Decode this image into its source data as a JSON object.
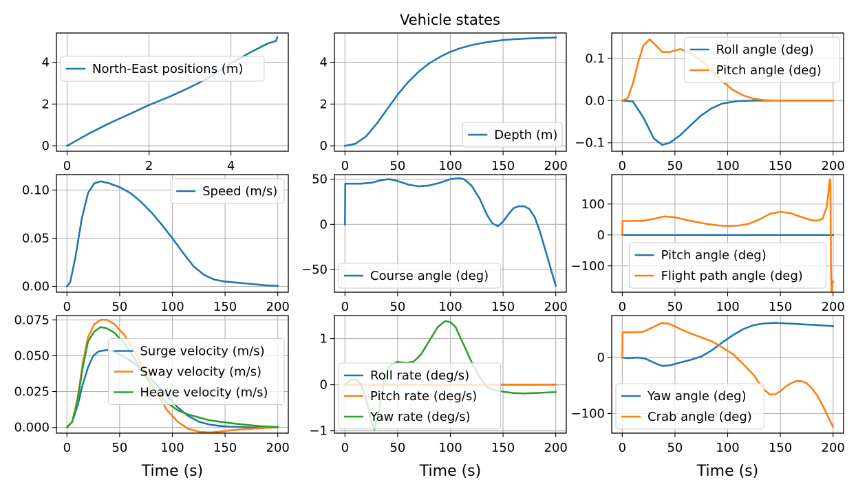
{
  "figure": {
    "title": "Vehicle states",
    "colors": {
      "blue": "#1f77b4",
      "orange": "#ff7f0e",
      "green": "#2ca02c",
      "grid": "#b0b0b0"
    }
  },
  "chart_data": [
    {
      "type": "line",
      "xlabel": "",
      "ylabel": "",
      "xlim": [
        -0.26,
        5.4
      ],
      "ylim": [
        -0.26,
        5.4
      ],
      "xticks": [
        0,
        2,
        4
      ],
      "yticks": [
        0,
        2,
        4
      ],
      "legend": "center-left",
      "grid": true,
      "series": [
        {
          "name": "North-East positions (m)",
          "color": "#1f77b4",
          "x": [
            0,
            0.5,
            1.0,
            1.5,
            2.0,
            2.5,
            3.0,
            3.5,
            4.0,
            4.5,
            4.9,
            5.1,
            5.13
          ],
          "y": [
            0,
            0.55,
            1.05,
            1.5,
            1.95,
            2.35,
            2.8,
            3.3,
            3.95,
            4.5,
            4.9,
            5.02,
            5.2
          ]
        }
      ]
    },
    {
      "type": "line",
      "xlabel": "",
      "ylabel": "",
      "xlim": [
        -10,
        210
      ],
      "ylim": [
        -0.26,
        5.4
      ],
      "xticks": [
        0,
        50,
        100,
        150,
        200
      ],
      "yticks": [
        0,
        2,
        4
      ],
      "legend": "bottom-right",
      "grid": true,
      "series": [
        {
          "name": "Depth (m)",
          "color": "#1f77b4",
          "x": [
            0,
            10,
            20,
            30,
            40,
            50,
            60,
            70,
            80,
            90,
            100,
            110,
            120,
            130,
            140,
            150,
            160,
            170,
            180,
            190,
            200
          ],
          "y": [
            0,
            0.1,
            0.45,
            1.05,
            1.75,
            2.45,
            3.05,
            3.55,
            3.95,
            4.25,
            4.5,
            4.68,
            4.82,
            4.92,
            5.0,
            5.06,
            5.1,
            5.13,
            5.15,
            5.17,
            5.18
          ]
        }
      ]
    },
    {
      "type": "line",
      "xlabel": "",
      "ylabel": "",
      "xlim": [
        -10,
        210
      ],
      "ylim": [
        -0.12,
        0.16
      ],
      "xticks": [
        0,
        50,
        100,
        150,
        200
      ],
      "yticks": [
        -0.1,
        0.0,
        0.1
      ],
      "ytick_labels": [
        "−0.1",
        "0.0",
        "0.1"
      ],
      "legend": "top-right",
      "grid": true,
      "series": [
        {
          "name": "Roll angle (deg)",
          "color": "#1f77b4",
          "x": [
            0,
            10,
            20,
            30,
            38,
            45,
            55,
            65,
            75,
            85,
            95,
            110,
            125,
            140,
            200
          ],
          "y": [
            0,
            -0.002,
            -0.04,
            -0.09,
            -0.105,
            -0.1,
            -0.082,
            -0.058,
            -0.035,
            -0.018,
            -0.007,
            -0.001,
            0,
            0,
            0
          ]
        },
        {
          "name": "Pitch angle (deg)",
          "color": "#ff7f0e",
          "x": [
            0,
            5,
            10,
            15,
            20,
            26,
            32,
            38,
            45,
            55,
            65,
            75,
            85,
            95,
            105,
            115,
            125,
            135,
            145,
            200
          ],
          "y": [
            0,
            0.005,
            0.04,
            0.09,
            0.13,
            0.145,
            0.13,
            0.115,
            0.115,
            0.122,
            0.112,
            0.095,
            0.07,
            0.045,
            0.025,
            0.012,
            0.004,
            0.001,
            0,
            0
          ]
        }
      ]
    },
    {
      "type": "line",
      "xlabel": "",
      "ylabel": "",
      "xlim": [
        -10,
        210
      ],
      "ylim": [
        -0.006,
        0.116
      ],
      "xticks": [
        0,
        50,
        100,
        150,
        200
      ],
      "yticks": [
        0.0,
        0.05,
        0.1
      ],
      "ytick_labels": [
        "0.00",
        "0.05",
        "0.10"
      ],
      "legend": "top-right",
      "grid": true,
      "series": [
        {
          "name": "Speed (m/s)",
          "color": "#1f77b4",
          "x": [
            0,
            3,
            8,
            14,
            20,
            26,
            32,
            40,
            50,
            60,
            70,
            80,
            90,
            100,
            110,
            120,
            130,
            140,
            150,
            160,
            170,
            180,
            190,
            200
          ],
          "y": [
            0,
            0.004,
            0.03,
            0.07,
            0.097,
            0.107,
            0.109,
            0.107,
            0.103,
            0.097,
            0.088,
            0.077,
            0.064,
            0.05,
            0.035,
            0.021,
            0.012,
            0.007,
            0.005,
            0.004,
            0.003,
            0.002,
            0.001,
            0.0005
          ]
        }
      ]
    },
    {
      "type": "line",
      "xlabel": "",
      "ylabel": "",
      "xlim": [
        -10,
        210
      ],
      "ylim": [
        -75,
        55
      ],
      "xticks": [
        0,
        50,
        100,
        150,
        200
      ],
      "yticks": [
        -50,
        0,
        50
      ],
      "ytick_labels": [
        "−50",
        "0",
        "50"
      ],
      "legend": "bottom-left",
      "grid": true,
      "series": [
        {
          "name": "Course angle (deg)",
          "color": "#1f77b4",
          "x": [
            0,
            0.3,
            5,
            15,
            25,
            35,
            42,
            50,
            60,
            70,
            80,
            90,
            100,
            108,
            113,
            120,
            128,
            135,
            140,
            145,
            150,
            155,
            160,
            165,
            170,
            175,
            180,
            185,
            190,
            195,
            200
          ],
          "y": [
            0,
            45,
            45,
            45,
            46,
            49,
            50,
            48,
            44,
            42,
            43,
            46,
            50,
            51,
            50,
            43,
            28,
            10,
            1,
            -2,
            3,
            11,
            18,
            20,
            20,
            17,
            8,
            -8,
            -28,
            -48,
            -68
          ]
        }
      ]
    },
    {
      "type": "line",
      "xlabel": "",
      "ylabel": "",
      "xlim": [
        -10,
        210
      ],
      "ylim": [
        -185,
        195
      ],
      "xticks": [
        0,
        50,
        100,
        150,
        200
      ],
      "yticks": [
        -100,
        0,
        100
      ],
      "ytick_labels": [
        "−100",
        "0",
        "100"
      ],
      "legend": "bottom-center",
      "grid": true,
      "series": [
        {
          "name": "Pitch angle (deg)",
          "color": "#1f77b4",
          "x": [
            0,
            200
          ],
          "y": [
            0,
            0
          ]
        },
        {
          "name": "Flight path angle (deg)",
          "color": "#ff7f0e",
          "x": [
            0,
            0.3,
            10,
            20,
            30,
            40,
            50,
            60,
            70,
            80,
            90,
            100,
            110,
            120,
            130,
            140,
            150,
            160,
            170,
            180,
            185,
            190,
            194,
            196,
            197,
            197.5,
            198,
            198.5,
            199,
            200
          ],
          "y": [
            0,
            45,
            45,
            46,
            52,
            60,
            57,
            49,
            42,
            36,
            31,
            29,
            30,
            36,
            50,
            68,
            75,
            70,
            58,
            47,
            46,
            52,
            90,
            150,
            180,
            175,
            -100,
            -185,
            -160,
            -150
          ]
        }
      ]
    },
    {
      "type": "line",
      "xlabel": "Time (s)",
      "ylabel": "",
      "xlim": [
        -10,
        210
      ],
      "ylim": [
        -0.004,
        0.078
      ],
      "xticks": [
        0,
        50,
        100,
        150,
        200
      ],
      "yticks": [
        0.0,
        0.025,
        0.05,
        0.075
      ],
      "ytick_labels": [
        "0.000",
        "0.025",
        "0.050",
        "0.075"
      ],
      "legend": "center-right",
      "grid": true,
      "series": [
        {
          "name": "Surge velocity (m/s)",
          "color": "#1f77b4",
          "x": [
            0,
            5,
            10,
            15,
            20,
            25,
            30,
            38,
            45,
            55,
            65,
            75,
            85,
            95,
            105,
            115,
            125,
            135,
            145,
            155,
            175,
            200
          ],
          "y": [
            0,
            0.004,
            0.015,
            0.03,
            0.042,
            0.05,
            0.053,
            0.054,
            0.053,
            0.049,
            0.044,
            0.037,
            0.03,
            0.022,
            0.014,
            0.008,
            0.004,
            0.002,
            0.001,
            0.0005,
            0,
            0
          ]
        },
        {
          "name": "Sway velocity (m/s)",
          "color": "#ff7f0e",
          "x": [
            0,
            5,
            10,
            15,
            20,
            26,
            32,
            38,
            45,
            55,
            65,
            75,
            85,
            95,
            105,
            115,
            125,
            135,
            145,
            155,
            170,
            185,
            200
          ],
          "y": [
            0,
            0.004,
            0.02,
            0.045,
            0.063,
            0.072,
            0.075,
            0.075,
            0.072,
            0.064,
            0.052,
            0.038,
            0.024,
            0.012,
            0.004,
            -0.001,
            -0.003,
            -0.0035,
            -0.003,
            -0.002,
            -0.0012,
            -0.0005,
            0
          ]
        },
        {
          "name": "Heave velocity (m/s)",
          "color": "#2ca02c",
          "x": [
            0,
            5,
            10,
            15,
            20,
            26,
            32,
            38,
            45,
            55,
            65,
            75,
            85,
            95,
            105,
            115,
            125,
            135,
            145,
            155,
            170,
            185,
            200
          ],
          "y": [
            0,
            0.004,
            0.018,
            0.042,
            0.06,
            0.067,
            0.07,
            0.069,
            0.066,
            0.058,
            0.047,
            0.035,
            0.025,
            0.017,
            0.012,
            0.009,
            0.007,
            0.005,
            0.004,
            0.003,
            0.0018,
            0.0008,
            0.0002
          ]
        }
      ]
    },
    {
      "type": "line",
      "xlabel": "Time (s)",
      "ylabel": "",
      "xlim": [
        -10,
        210
      ],
      "ylim": [
        -1.05,
        1.5
      ],
      "xticks": [
        0,
        50,
        100,
        150,
        200
      ],
      "yticks": [
        -1,
        0,
        1
      ],
      "ytick_labels": [
        "−1",
        "0",
        "1"
      ],
      "legend": "bottom-left",
      "grid": true,
      "series": [
        {
          "name": "Roll rate (deg/s)",
          "color": "#1f77b4",
          "x": [
            0,
            200
          ],
          "y": [
            0,
            0
          ]
        },
        {
          "name": "Pitch rate (deg/s)",
          "color": "#ff7f0e",
          "x": [
            0,
            200
          ],
          "y": [
            0,
            0
          ]
        },
        {
          "name": "Yaw rate (deg/s)",
          "color": "#2ca02c",
          "x": [
            0,
            5,
            10,
            15,
            20,
            25,
            28,
            32,
            37,
            42,
            50,
            58,
            65,
            72,
            80,
            88,
            95,
            100,
            105,
            112,
            120,
            128,
            135,
            142,
            150,
            160,
            170,
            180,
            190,
            200
          ],
          "y": [
            0,
            0.1,
            0.12,
            0.02,
            -0.3,
            -0.8,
            -0.97,
            -0.6,
            0.05,
            0.4,
            0.5,
            0.47,
            0.5,
            0.65,
            0.95,
            1.25,
            1.38,
            1.36,
            1.25,
            0.9,
            0.5,
            0.15,
            -0.05,
            -0.12,
            -0.15,
            -0.18,
            -0.19,
            -0.18,
            -0.17,
            -0.16
          ]
        }
      ]
    },
    {
      "type": "line",
      "xlabel": "Time (s)",
      "ylabel": "",
      "xlim": [
        -10,
        210
      ],
      "ylim": [
        -135,
        75
      ],
      "xticks": [
        0,
        50,
        100,
        150,
        200
      ],
      "yticks": [
        -100,
        0
      ],
      "ytick_labels": [
        "−100",
        "0"
      ],
      "legend": "bottom-left",
      "grid": true,
      "series": [
        {
          "name": "Yaw angle (deg)",
          "color": "#1f77b4",
          "x": [
            0,
            5,
            10,
            15,
            22,
            30,
            38,
            45,
            55,
            65,
            75,
            85,
            95,
            105,
            115,
            125,
            135,
            145,
            155,
            165,
            175,
            185,
            200
          ],
          "y": [
            0,
            -1,
            -0.5,
            0,
            -2,
            -9,
            -15,
            -14,
            -9,
            -4,
            2,
            13,
            27,
            40,
            51,
            58,
            61,
            62,
            61,
            60,
            59,
            58,
            56
          ]
        },
        {
          "name": "Crab angle (deg)",
          "color": "#ff7f0e",
          "x": [
            0,
            0.3,
            5,
            12,
            20,
            30,
            38,
            45,
            55,
            65,
            75,
            85,
            95,
            105,
            115,
            125,
            130,
            135,
            140,
            145,
            150,
            155,
            160,
            165,
            170,
            175,
            180,
            185,
            190,
            195,
            200
          ],
          "y": [
            0,
            45,
            45,
            45,
            46,
            55,
            62,
            60,
            51,
            43,
            36,
            29,
            18,
            6,
            -12,
            -32,
            -46,
            -58,
            -66,
            -66,
            -60,
            -52,
            -46,
            -42,
            -42,
            -46,
            -55,
            -68,
            -85,
            -105,
            -124
          ]
        }
      ]
    }
  ]
}
